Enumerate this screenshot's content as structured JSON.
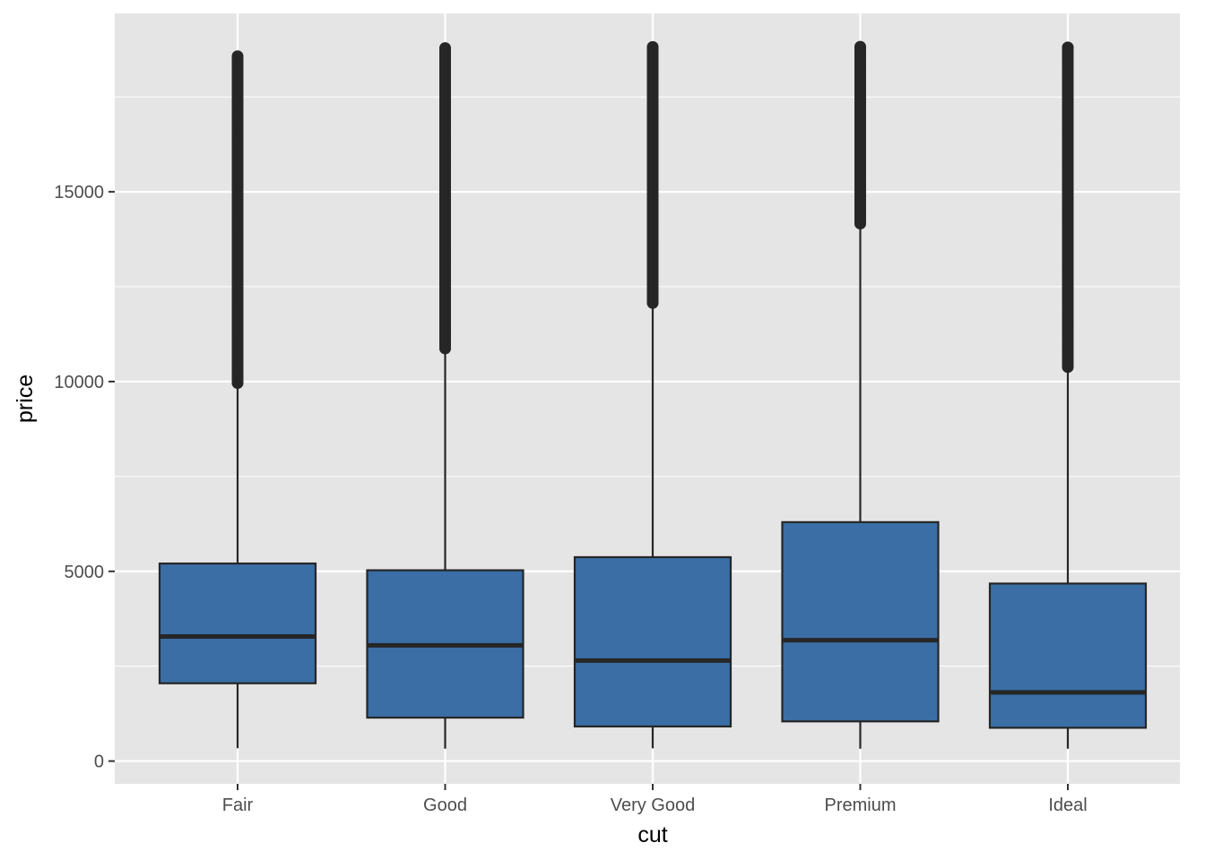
{
  "chart_data": {
    "type": "boxplot",
    "xlabel": "cut",
    "ylabel": "price",
    "categories": [
      "Fair",
      "Good",
      "Very Good",
      "Premium",
      "Ideal"
    ],
    "ylim": [
      -600,
      19700
    ],
    "y_ticks": [
      0,
      5000,
      10000,
      15000
    ],
    "y_tick_labels": [
      "0",
      "5000",
      "10000",
      "15000"
    ],
    "grid": true,
    "legend": "none",
    "colors": {
      "panel": "#e5e5e5",
      "grid": "#ffffff",
      "box_fill": "#3a6ea5",
      "box_stroke": "#262626",
      "outlier": "#262626",
      "tick_text": "#4d4d4d"
    },
    "boxes": [
      {
        "category": "Fair",
        "min": 337,
        "q1": 2050,
        "median": 3282,
        "q3": 5206,
        "whisker_high": 9940,
        "outlier_min": 9960,
        "outlier_max": 18574
      },
      {
        "category": "Good",
        "min": 327,
        "q1": 1145,
        "median": 3050,
        "q3": 5028,
        "whisker_high": 10850,
        "outlier_min": 10870,
        "outlier_max": 18788
      },
      {
        "category": "Very Good",
        "min": 336,
        "q1": 912,
        "median": 2648,
        "q3": 5373,
        "whisker_high": 12060,
        "outlier_min": 12070,
        "outlier_max": 18818
      },
      {
        "category": "Premium",
        "min": 326,
        "q1": 1046,
        "median": 3185,
        "q3": 6296,
        "whisker_high": 14150,
        "outlier_min": 14160,
        "outlier_max": 18823
      },
      {
        "category": "Ideal",
        "min": 326,
        "q1": 878,
        "median": 1810,
        "q3": 4678,
        "whisker_high": 10370,
        "outlier_min": 10380,
        "outlier_max": 18806
      }
    ]
  }
}
